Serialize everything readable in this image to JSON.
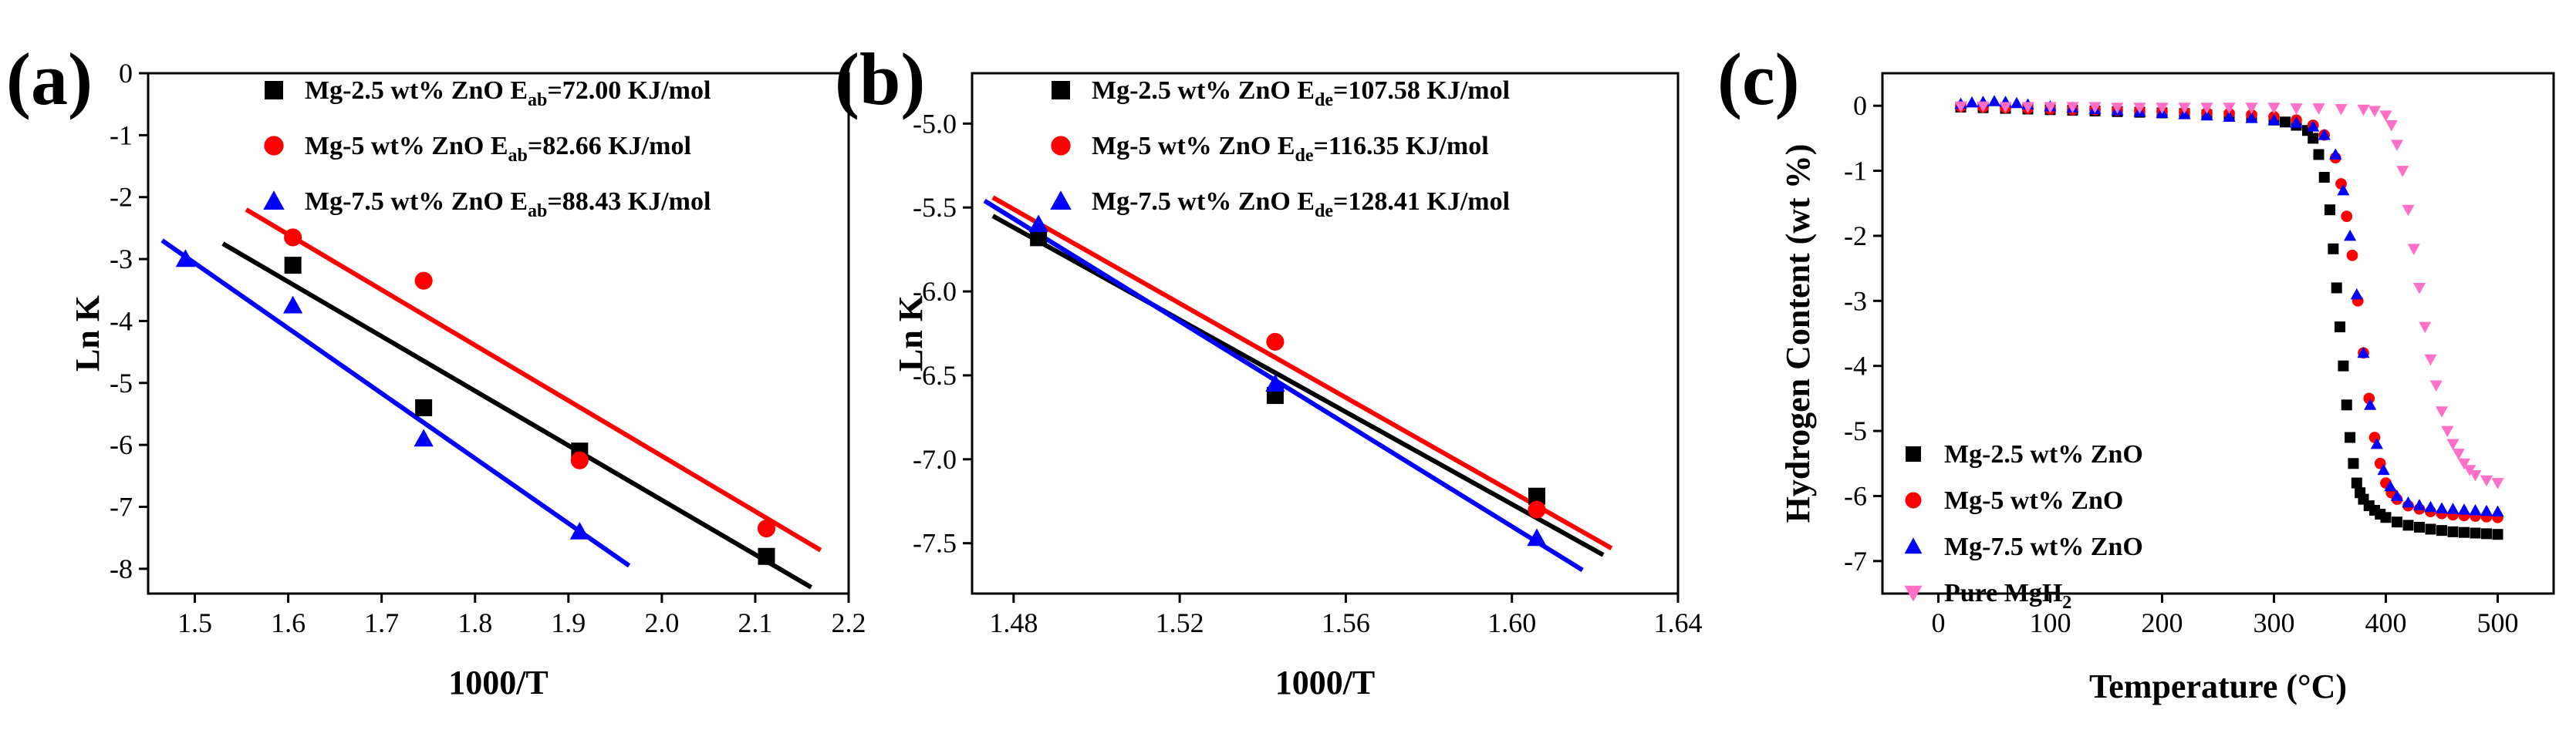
{
  "chart_data": [
    {
      "type": "scatter",
      "panel_label": "(a)",
      "xlabel": "1000/T",
      "ylabel": "Ln K",
      "xlim": [
        1.45,
        2.2
      ],
      "ylim": [
        -8.4,
        0
      ],
      "xticks": [
        1.5,
        1.6,
        1.7,
        1.8,
        1.9,
        2.0,
        2.1,
        2.2
      ],
      "xtick_labels": [
        "1.5",
        "1.6",
        "1.7",
        "1.8",
        "1.9",
        "2.0",
        "2.1",
        "2.2"
      ],
      "yticks": [
        0,
        -1,
        -2,
        -3,
        -4,
        -5,
        -6,
        -7,
        -8
      ],
      "ytick_labels": [
        "0",
        "-1",
        "-2",
        "-3",
        "-4",
        "-5",
        "-6",
        "-7",
        "-8"
      ],
      "legend_position": "top-right",
      "series": [
        {
          "name": "Mg-2.5 wt% ZnO",
          "legend_prefix": "Mg-2.5 wt% ZnO E",
          "legend_sub": "ab",
          "legend_suffix": "=72.00 KJ/mol",
          "marker": "square",
          "color": "#000000",
          "x": [
            1.605,
            1.745,
            1.912,
            2.112
          ],
          "y": [
            -3.1,
            -5.4,
            -6.1,
            -7.8
          ],
          "fit": {
            "x": [
              1.53,
              2.16
            ],
            "y": [
              -2.75,
              -8.3
            ]
          }
        },
        {
          "name": "Mg-5 wt% ZnO",
          "legend_prefix": "Mg-5 wt% ZnO E",
          "legend_sub": "ab",
          "legend_suffix": "=82.66 KJ/mol",
          "marker": "circle",
          "color": "#ff0000",
          "x": [
            1.605,
            1.745,
            1.912,
            2.112
          ],
          "y": [
            -2.65,
            -3.35,
            -6.25,
            -7.35
          ],
          "fit": {
            "x": [
              1.555,
              2.17
            ],
            "y": [
              -2.2,
              -7.7
            ]
          }
        },
        {
          "name": "Mg-7.5 wt% ZnO",
          "legend_prefix": "Mg-7.5 wt% ZnO E",
          "legend_sub": "ab",
          "legend_suffix": "=88.43 KJ/mol",
          "marker": "triangle",
          "color": "#0000ff",
          "x": [
            1.49,
            1.605,
            1.745,
            1.912
          ],
          "y": [
            -3.0,
            -3.75,
            -5.9,
            -7.4
          ],
          "fit": {
            "x": [
              1.465,
              1.965
            ],
            "y": [
              -2.7,
              -7.95
            ]
          }
        }
      ]
    },
    {
      "type": "scatter",
      "panel_label": "(b)",
      "xlabel": "1000/T",
      "ylabel": "Ln K",
      "xlim": [
        1.47,
        1.64
      ],
      "ylim": [
        -7.8,
        -4.7
      ],
      "xticks": [
        1.48,
        1.52,
        1.56,
        1.6,
        1.64
      ],
      "xtick_labels": [
        "1.48",
        "1.52",
        "1.56",
        "1.60",
        "1.64"
      ],
      "yticks": [
        -5.0,
        -5.5,
        -6.0,
        -6.5,
        -7.0,
        -7.5
      ],
      "ytick_labels": [
        "-5.0",
        "-5.5",
        "-6.0",
        "-6.5",
        "-7.0",
        "-7.5"
      ],
      "legend_position": "top-right",
      "series": [
        {
          "name": "Mg-2.5 wt% ZnO",
          "legend_prefix": "Mg-2.5 wt% ZnO E",
          "legend_sub": "de",
          "legend_suffix": "=107.58 KJ/mol",
          "marker": "square",
          "color": "#000000",
          "x": [
            1.486,
            1.543,
            1.606
          ],
          "y": [
            -5.68,
            -6.62,
            -7.22
          ],
          "fit": {
            "x": [
              1.475,
              1.622
            ],
            "y": [
              -5.55,
              -7.57
            ]
          }
        },
        {
          "name": "Mg-5 wt% ZnO",
          "legend_prefix": "Mg-5 wt% ZnO E",
          "legend_sub": "de",
          "legend_suffix": "=116.35 KJ/mol",
          "marker": "circle",
          "color": "#ff0000",
          "x": [
            1.543,
            1.606
          ],
          "y": [
            -6.3,
            -7.3
          ],
          "fit": {
            "x": [
              1.475,
              1.624
            ],
            "y": [
              -5.44,
              -7.53
            ]
          }
        },
        {
          "name": "Mg-7.5 wt% ZnO",
          "legend_prefix": "Mg-7.5 wt% ZnO E",
          "legend_sub": "de",
          "legend_suffix": "=128.41 KJ/mol",
          "marker": "triangle",
          "color": "#0000ff",
          "x": [
            1.486,
            1.543,
            1.606
          ],
          "y": [
            -5.6,
            -6.55,
            -7.47
          ],
          "fit": {
            "x": [
              1.473,
              1.617
            ],
            "y": [
              -5.46,
              -7.66
            ]
          }
        }
      ]
    },
    {
      "type": "scatter",
      "panel_label": "(c)",
      "xlabel": "Temperature (°C)",
      "ylabel": "Hydrogen Content (wt %)",
      "xlim": [
        -50,
        550
      ],
      "ylim": [
        -7.5,
        0.5
      ],
      "xticks": [
        0,
        100,
        200,
        300,
        400,
        500
      ],
      "xtick_labels": [
        "0",
        "100",
        "200",
        "300",
        "400",
        "500"
      ],
      "yticks": [
        0,
        -1,
        -2,
        -3,
        -4,
        -5,
        -6,
        -7
      ],
      "ytick_labels": [
        "0",
        "-1",
        "-2",
        "-3",
        "-4",
        "-5",
        "-6",
        "-7"
      ],
      "legend_position": "bottom-left",
      "series": [
        {
          "name": "Mg-2.5 wt% ZnO",
          "legend_label": "Mg-2.5 wt% ZnO",
          "marker": "square",
          "color": "#000000",
          "x": [
            20,
            40,
            60,
            80,
            100,
            120,
            140,
            160,
            180,
            200,
            220,
            240,
            260,
            280,
            300,
            310,
            320,
            330,
            335,
            340,
            345,
            350,
            353,
            356,
            359,
            362,
            365,
            368,
            371,
            374,
            377,
            380,
            385,
            390,
            395,
            400,
            410,
            420,
            430,
            440,
            450,
            460,
            470,
            480,
            490,
            500
          ],
          "y": [
            -0.02,
            -0.03,
            -0.04,
            -0.05,
            -0.06,
            -0.07,
            -0.08,
            -0.09,
            -0.1,
            -0.11,
            -0.12,
            -0.14,
            -0.16,
            -0.18,
            -0.22,
            -0.25,
            -0.3,
            -0.38,
            -0.5,
            -0.75,
            -1.1,
            -1.6,
            -2.2,
            -2.8,
            -3.4,
            -4.0,
            -4.6,
            -5.1,
            -5.5,
            -5.8,
            -5.95,
            -6.05,
            -6.15,
            -6.22,
            -6.28,
            -6.33,
            -6.4,
            -6.45,
            -6.48,
            -6.51,
            -6.53,
            -6.55,
            -6.56,
            -6.57,
            -6.58,
            -6.59
          ]
        },
        {
          "name": "Mg-5 wt% ZnO",
          "legend_label": "Mg-5 wt% ZnO",
          "marker": "circle",
          "color": "#ff0000",
          "x": [
            20,
            40,
            60,
            80,
            100,
            120,
            140,
            160,
            180,
            200,
            220,
            240,
            260,
            280,
            300,
            320,
            335,
            345,
            355,
            360,
            365,
            370,
            375,
            380,
            385,
            390,
            395,
            400,
            405,
            410,
            420,
            430,
            440,
            450,
            460,
            470,
            480,
            490,
            500
          ],
          "y": [
            -0.01,
            -0.02,
            -0.03,
            -0.04,
            -0.05,
            -0.06,
            -0.06,
            -0.07,
            -0.08,
            -0.09,
            -0.1,
            -0.11,
            -0.12,
            -0.14,
            -0.17,
            -0.22,
            -0.3,
            -0.45,
            -0.8,
            -1.2,
            -1.7,
            -2.3,
            -3.0,
            -3.8,
            -4.5,
            -5.1,
            -5.5,
            -5.8,
            -5.95,
            -6.05,
            -6.15,
            -6.2,
            -6.24,
            -6.27,
            -6.29,
            -6.3,
            -6.31,
            -6.32,
            -6.33
          ]
        },
        {
          "name": "Mg-7.5 wt% ZnO",
          "legend_label": "Mg-7.5 wt% ZnO",
          "marker": "triangle",
          "color": "#0000ff",
          "x": [
            20,
            30,
            40,
            50,
            60,
            70,
            80,
            100,
            120,
            140,
            160,
            180,
            200,
            220,
            240,
            260,
            280,
            300,
            320,
            335,
            345,
            355,
            362,
            368,
            374,
            380,
            386,
            392,
            398,
            404,
            410,
            420,
            430,
            440,
            450,
            460,
            470,
            480,
            490,
            500
          ],
          "y": [
            0.03,
            0.05,
            0.06,
            0.07,
            0.06,
            0.04,
            0.02,
            -0.01,
            -0.03,
            -0.05,
            -0.07,
            -0.09,
            -0.11,
            -0.13,
            -0.15,
            -0.17,
            -0.19,
            -0.22,
            -0.26,
            -0.32,
            -0.45,
            -0.75,
            -1.3,
            -2.0,
            -2.9,
            -3.8,
            -4.6,
            -5.2,
            -5.6,
            -5.85,
            -6.0,
            -6.1,
            -6.14,
            -6.17,
            -6.19,
            -6.2,
            -6.21,
            -6.22,
            -6.23,
            -6.24
          ]
        },
        {
          "name": "Pure MgH2",
          "legend_label": "Pure MgH",
          "legend_sub": "2",
          "marker": "triangle-down",
          "color": "#ff6ec7",
          "x": [
            20,
            40,
            60,
            80,
            100,
            120,
            140,
            160,
            180,
            200,
            220,
            240,
            260,
            280,
            300,
            320,
            340,
            360,
            380,
            390,
            400,
            405,
            410,
            415,
            420,
            425,
            430,
            435,
            440,
            445,
            450,
            455,
            460,
            465,
            470,
            475,
            480,
            490,
            500
          ],
          "y": [
            -0.01,
            -0.01,
            -0.02,
            -0.02,
            -0.02,
            -0.02,
            -0.02,
            -0.03,
            -0.03,
            -0.03,
            -0.03,
            -0.03,
            -0.03,
            -0.03,
            -0.03,
            -0.04,
            -0.04,
            -0.05,
            -0.06,
            -0.08,
            -0.15,
            -0.3,
            -0.6,
            -1.0,
            -1.6,
            -2.2,
            -2.8,
            -3.4,
            -3.9,
            -4.3,
            -4.7,
            -5.0,
            -5.2,
            -5.35,
            -5.5,
            -5.6,
            -5.68,
            -5.76,
            -5.8
          ]
        }
      ]
    }
  ]
}
